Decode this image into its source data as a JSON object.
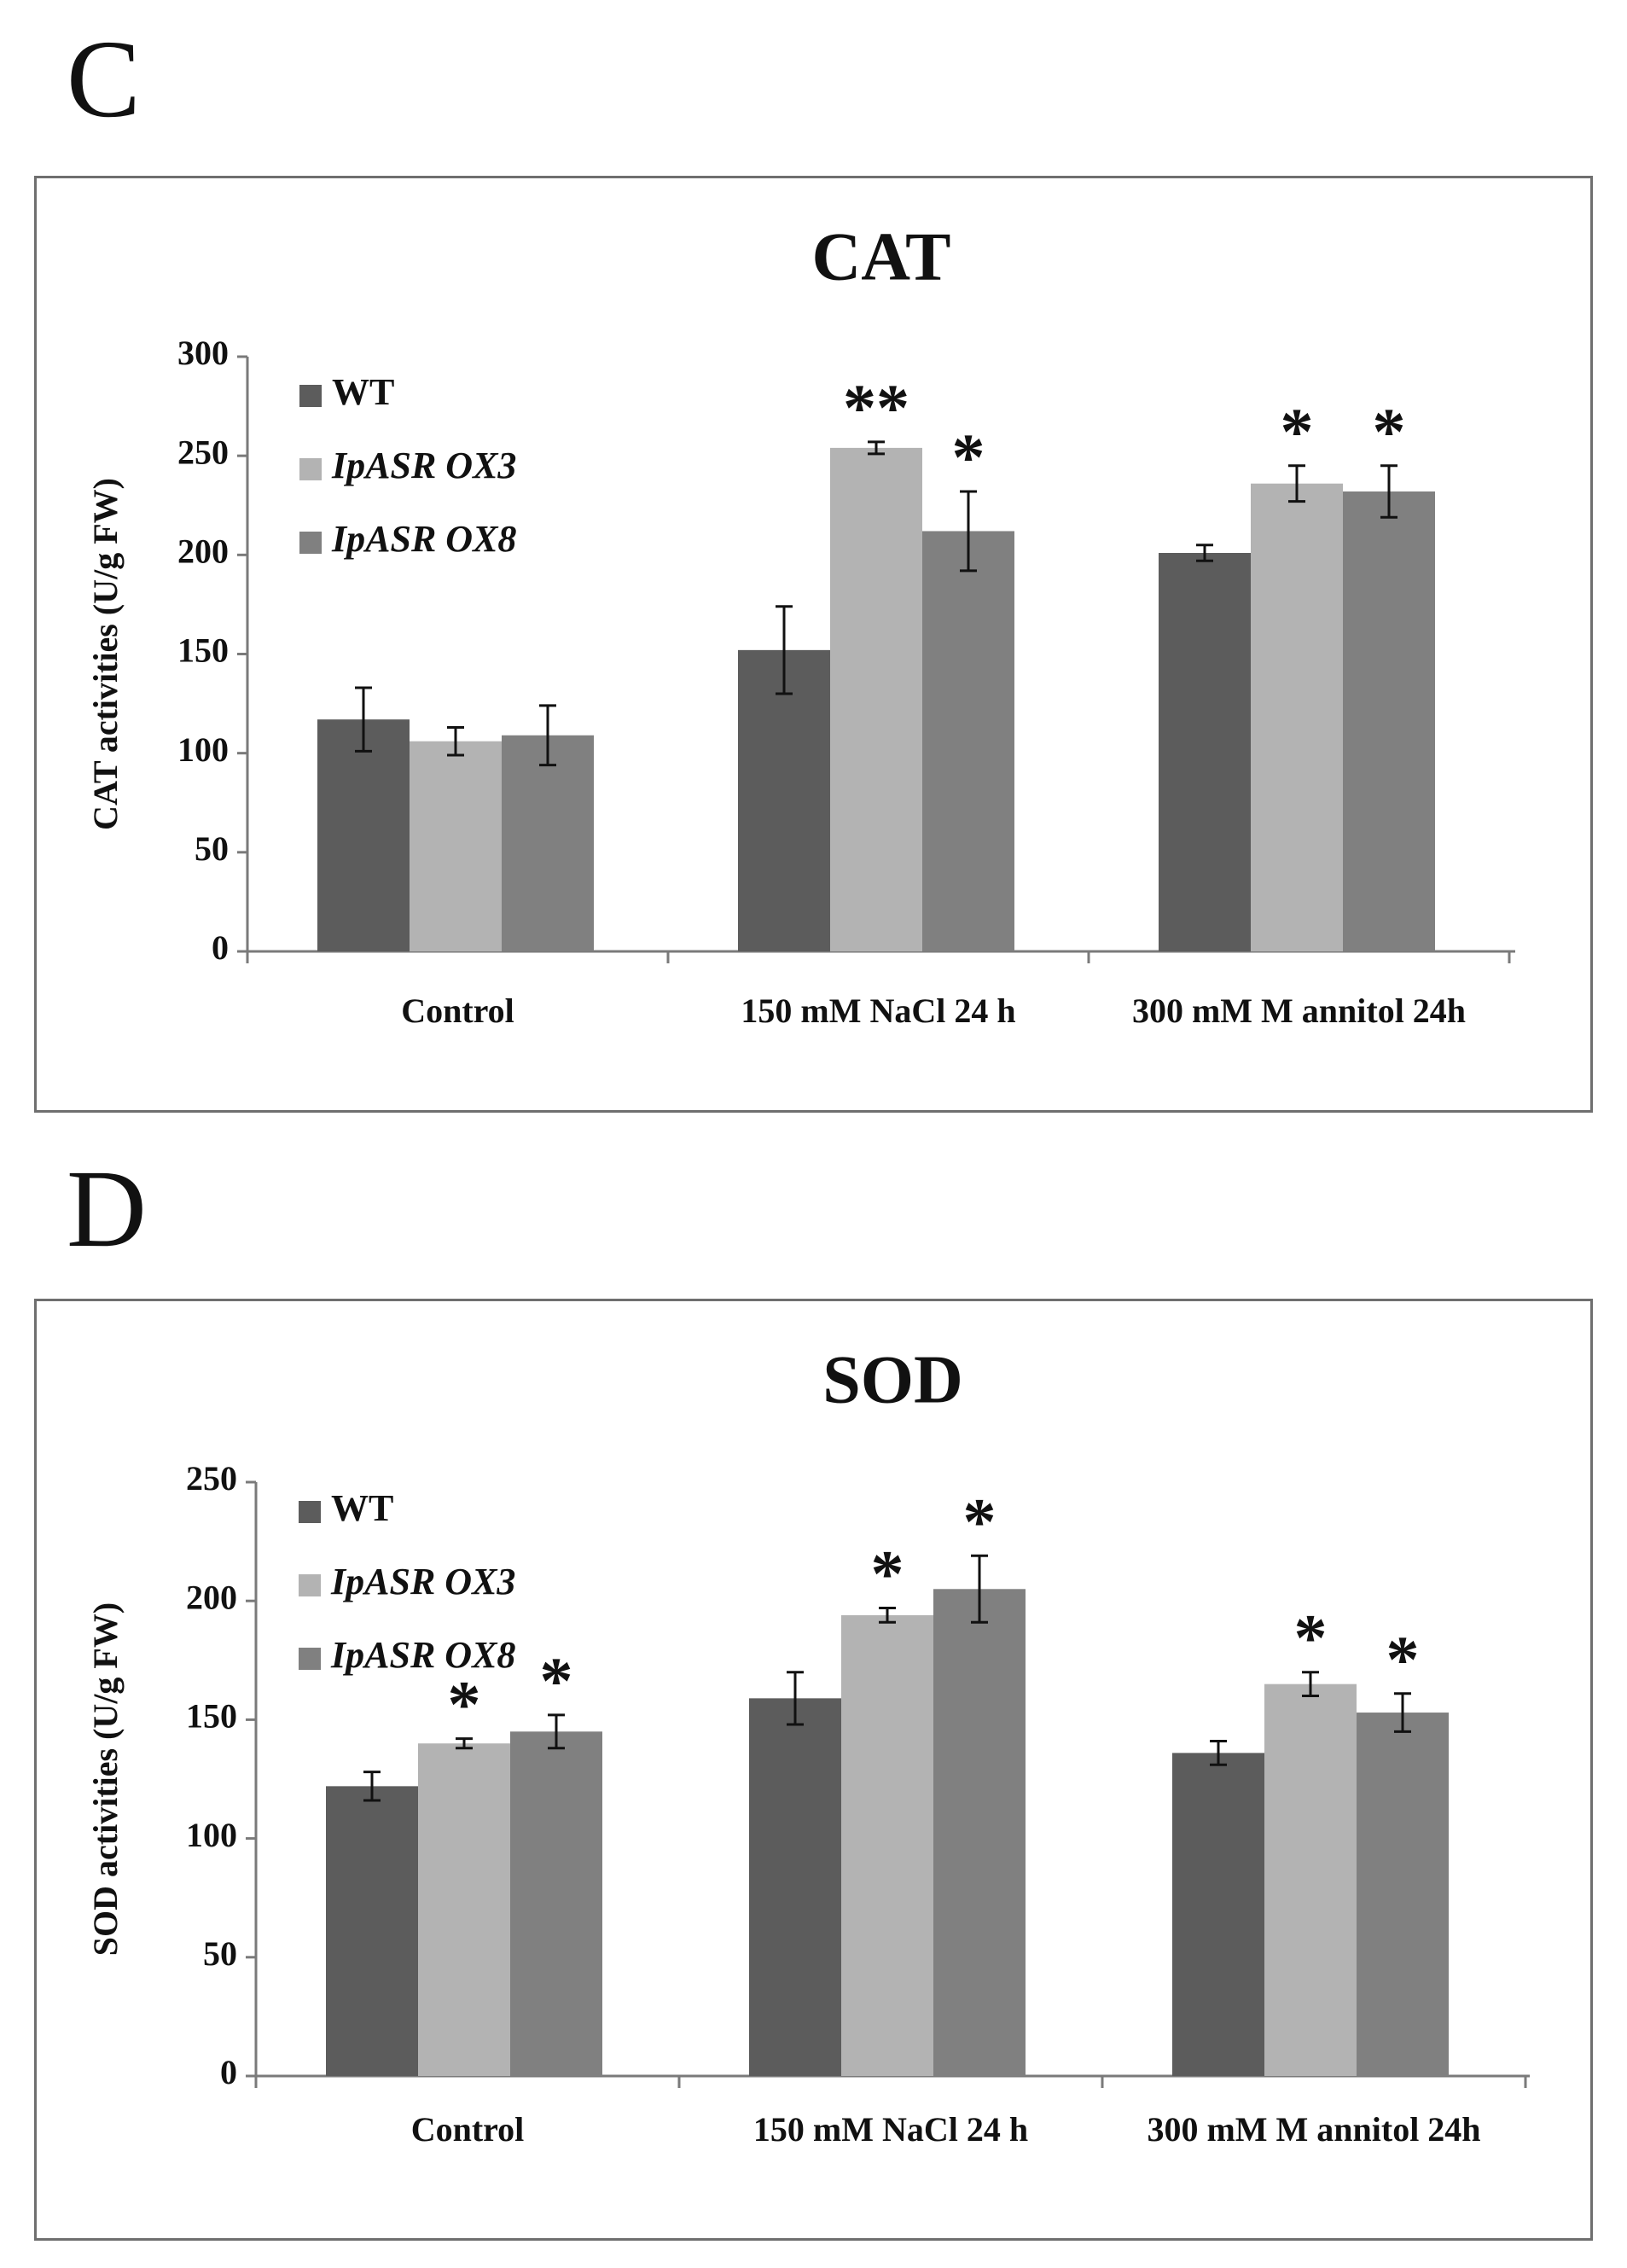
{
  "panels": [
    {
      "letter": "C"
    },
    {
      "letter": "D"
    }
  ],
  "colors": {
    "WT": "#5c5c5c",
    "IpASR OX3": "#b3b3b3",
    "IpASR OX8": "#808080",
    "axis": "#7a7a7a"
  },
  "chart_data": [
    {
      "type": "bar",
      "title": "CAT",
      "xlabel": "",
      "ylabel": "CAT activities (U/g  FW)",
      "ylim": [
        0,
        300
      ],
      "yticks": [
        0,
        50,
        100,
        150,
        200,
        250,
        300
      ],
      "grid": false,
      "legend_position": "top-left",
      "categories": [
        "Control",
        "150 mM  NaCl 24 h",
        "300 mM  M annitol 24h"
      ],
      "series": [
        {
          "name": "WT",
          "values": [
            117,
            152,
            201
          ],
          "errors": [
            16,
            22,
            4
          ],
          "marks": [
            "",
            "",
            ""
          ]
        },
        {
          "name": "IpASR OX3",
          "values": [
            106,
            254,
            236
          ],
          "errors": [
            7,
            3,
            9
          ],
          "marks": [
            "",
            "**",
            "*"
          ]
        },
        {
          "name": "IpASR OX8",
          "values": [
            109,
            212,
            232
          ],
          "errors": [
            15,
            20,
            13
          ],
          "marks": [
            "",
            "*",
            "*"
          ]
        }
      ]
    },
    {
      "type": "bar",
      "title": "SOD",
      "xlabel": "",
      "ylabel": "SOD activities (U/g  FW)",
      "ylim": [
        0,
        250
      ],
      "yticks": [
        0,
        50,
        100,
        150,
        200,
        250
      ],
      "grid": false,
      "legend_position": "top-left",
      "categories": [
        "Control",
        "150 mM  NaCl 24 h",
        "300 mM  M annitol 24h"
      ],
      "series": [
        {
          "name": "WT",
          "values": [
            122,
            159,
            136
          ],
          "errors": [
            6,
            11,
            5
          ],
          "marks": [
            "",
            "",
            ""
          ]
        },
        {
          "name": "IpASR OX3",
          "values": [
            140,
            194,
            165
          ],
          "errors": [
            2,
            3,
            5
          ],
          "marks": [
            "*",
            "*",
            "*"
          ]
        },
        {
          "name": "IpASR OX8",
          "values": [
            145,
            205,
            153
          ],
          "errors": [
            7,
            14,
            8
          ],
          "marks": [
            "*",
            "*",
            "*"
          ]
        }
      ]
    }
  ]
}
